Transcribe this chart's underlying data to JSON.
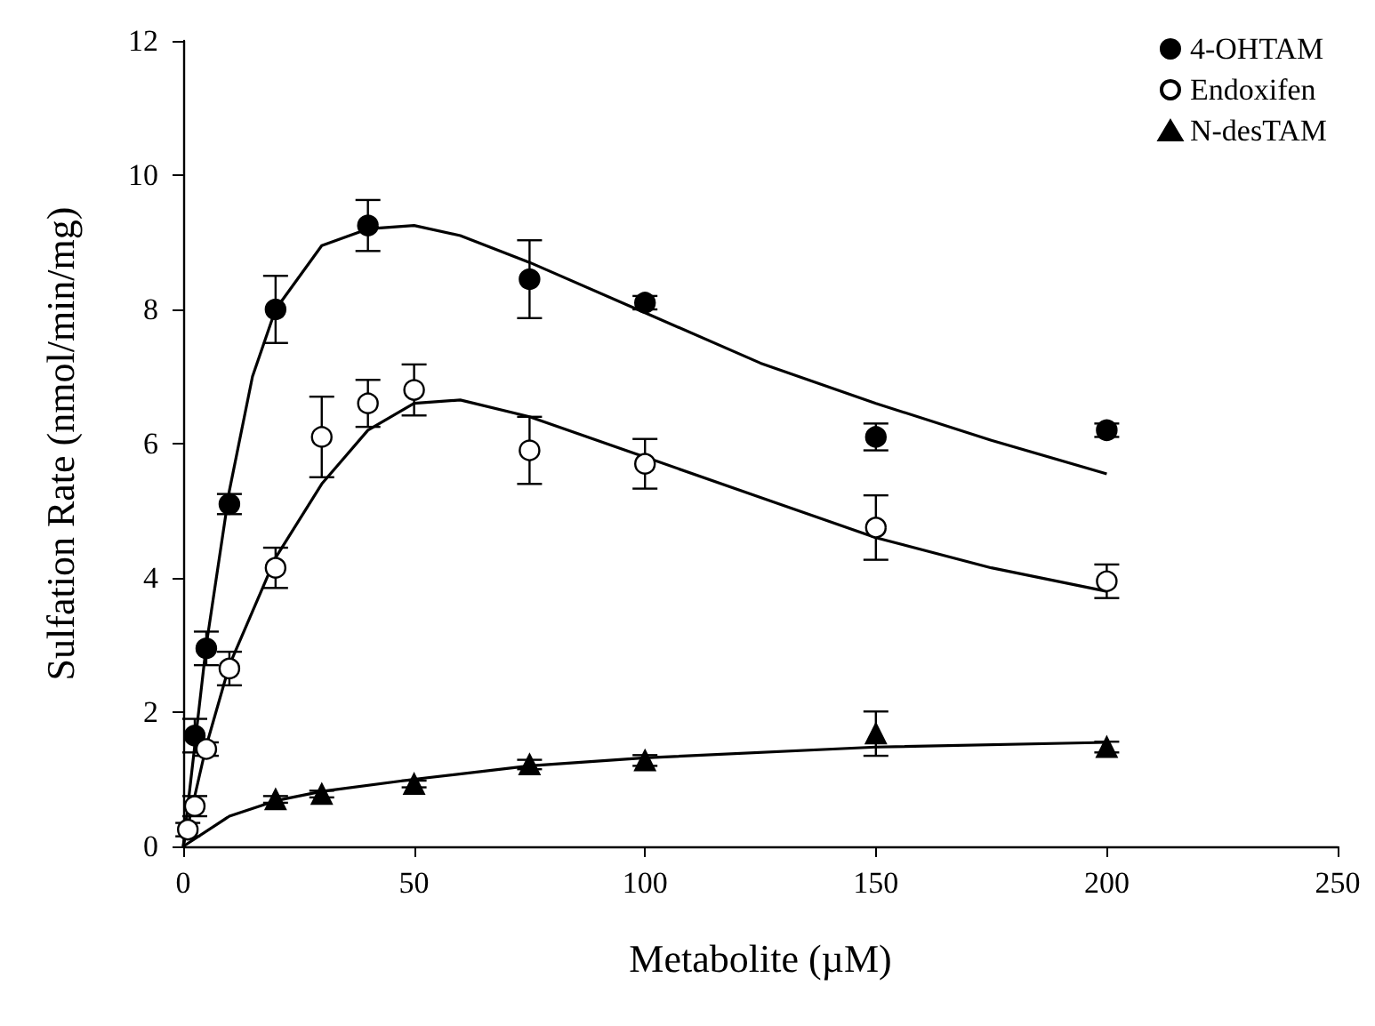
{
  "chart_data": {
    "type": "scatter",
    "xlabel": "Metabolite (µM)",
    "ylabel": "Sulfation Rate (nmol/min/mg)",
    "xlim": [
      0,
      250
    ],
    "xticks": [
      0,
      50,
      100,
      150,
      200,
      250
    ],
    "ylim": [
      0,
      12
    ],
    "yticks": [
      0,
      2,
      4,
      6,
      8,
      10,
      12
    ],
    "grid": false,
    "legend": "top right",
    "series": [
      {
        "name": "4-OHTAM",
        "marker": "circle",
        "color": "#000000",
        "x": [
          2.5,
          5,
          10,
          20,
          40,
          75,
          100,
          150,
          200
        ],
        "values": [
          1.65,
          2.95,
          5.1,
          8.0,
          9.25,
          8.45,
          8.1,
          6.1,
          6.2
        ],
        "errors": [
          0.25,
          0.25,
          0.15,
          0.5,
          0.38,
          0.58,
          0.1,
          0.2,
          0.1
        ]
      },
      {
        "name": "Endoxifen",
        "marker": "circle",
        "color": "#ffffff",
        "x": [
          1,
          2.5,
          5,
          10,
          20,
          30,
          40,
          50,
          75,
          100,
          150,
          200
        ],
        "values": [
          0.25,
          0.6,
          1.45,
          2.65,
          4.15,
          6.1,
          6.6,
          6.8,
          5.9,
          5.7,
          4.75,
          3.95
        ],
        "errors": [
          0.1,
          0.15,
          0.1,
          0.25,
          0.3,
          0.6,
          0.35,
          0.38,
          0.5,
          0.37,
          0.48,
          0.25
        ]
      },
      {
        "name": "N-desTAM",
        "marker": "triangle",
        "color": "#000000",
        "x": [
          20,
          30,
          50,
          75,
          100,
          150,
          200
        ],
        "values": [
          0.7,
          0.78,
          0.93,
          1.22,
          1.28,
          1.68,
          1.48
        ],
        "errors": [
          0.05,
          0.05,
          0.05,
          0.07,
          0.08,
          0.33,
          0.08
        ]
      },
      {
        "type": "line",
        "marker": "none",
        "color": "#000000",
        "x": [
          0,
          2.5,
          5,
          10,
          15,
          20,
          30,
          40,
          50,
          60,
          75,
          100,
          125,
          150,
          175,
          200
        ],
        "values": [
          0,
          1.5,
          3.0,
          5.3,
          7.0,
          8.0,
          8.95,
          9.2,
          9.25,
          9.1,
          8.7,
          7.95,
          7.2,
          6.6,
          6.05,
          5.55
        ]
      },
      {
        "type": "line",
        "marker": "none",
        "color": "#000000",
        "x": [
          0,
          5,
          10,
          20,
          30,
          40,
          50,
          60,
          75,
          100,
          125,
          150,
          175,
          200
        ],
        "values": [
          0,
          1.5,
          2.7,
          4.3,
          5.4,
          6.2,
          6.6,
          6.65,
          6.4,
          5.8,
          5.2,
          4.6,
          4.15,
          3.8
        ]
      },
      {
        "type": "line",
        "marker": "none",
        "color": "#000000",
        "x": [
          0,
          10,
          20,
          30,
          50,
          75,
          100,
          150,
          200
        ],
        "values": [
          0,
          0.45,
          0.68,
          0.82,
          1.0,
          1.2,
          1.32,
          1.48,
          1.55
        ]
      }
    ]
  }
}
